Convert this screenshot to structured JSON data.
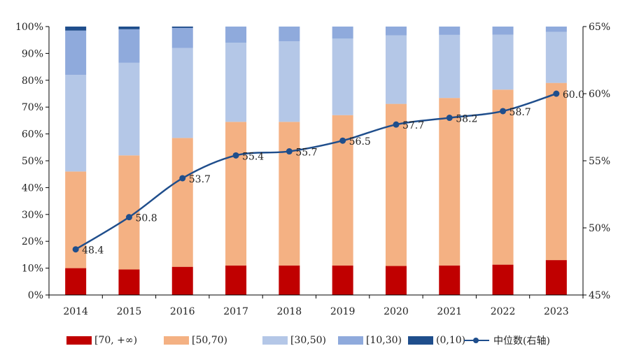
{
  "chart_data": {
    "type": "bar",
    "stacked": true,
    "categories": [
      "2014",
      "2015",
      "2016",
      "2017",
      "2018",
      "2019",
      "2020",
      "2021",
      "2022",
      "2023"
    ],
    "series": [
      {
        "name": "[70, +∞)",
        "color": "#c00000",
        "values": [
          10,
          9.5,
          10.5,
          11,
          11,
          11,
          10.8,
          11,
          11.3,
          13
        ]
      },
      {
        "name": "[50,70)",
        "color": "#f4b183",
        "values": [
          36,
          42.5,
          48,
          53.5,
          53.5,
          56,
          60.4,
          62.4,
          65.2,
          66
        ]
      },
      {
        "name": "[30,50)",
        "color": "#b4c7e7",
        "values": [
          36,
          34.5,
          33.5,
          29.5,
          30,
          28.5,
          25.5,
          23.5,
          20.5,
          19
        ]
      },
      {
        "name": "[10,30)",
        "color": "#8faadc",
        "values": [
          16.5,
          12.5,
          7.5,
          6,
          5.5,
          4.5,
          3.3,
          3.1,
          3,
          2
        ]
      },
      {
        "name": "(0,10)",
        "color": "#1f4e8c",
        "values": [
          1.5,
          1,
          0.5,
          0,
          0,
          0,
          0,
          0,
          0,
          0
        ]
      }
    ],
    "line": {
      "name": "中位数(右轴)",
      "color": "#1f4e8c",
      "axis": "right",
      "values": [
        48.4,
        50.8,
        53.7,
        55.4,
        55.7,
        56.5,
        57.7,
        58.2,
        58.7,
        60.0
      ],
      "labels": [
        "48.4",
        "50.8",
        "53.7",
        "55.4",
        "55.7",
        "56.5",
        "57.7",
        "58.2",
        "58.7",
        "60.0"
      ]
    },
    "y_left": {
      "ticks": [
        "0%",
        "10%",
        "20%",
        "30%",
        "40%",
        "50%",
        "60%",
        "70%",
        "80%",
        "90%",
        "100%"
      ],
      "lim": [
        0,
        100
      ]
    },
    "y_right": {
      "ticks": [
        "45%",
        "50%",
        "55%",
        "60%",
        "65%"
      ],
      "lim": [
        45,
        65
      ]
    },
    "legend_position": "bottom"
  }
}
